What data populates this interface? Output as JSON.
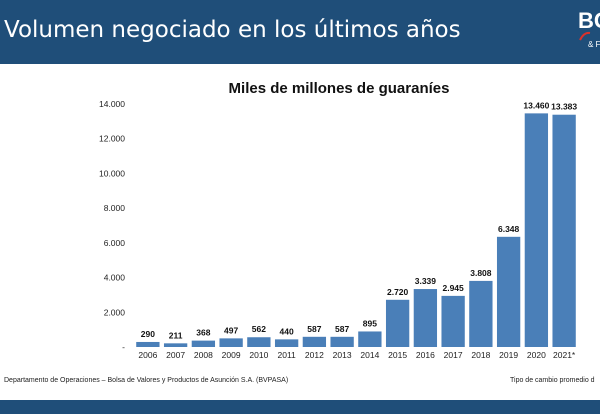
{
  "header": {
    "title": "Volumen negociado en los últimos años",
    "logo_text": "BC",
    "logo_sub": "& F",
    "background_color": "#1f4e79"
  },
  "footer": {
    "source": "Departamento de Operaciones – Bolsa de Valores y Productos de Asunción S.A. (BVPASA)",
    "note": "Tipo de cambio promedio d"
  },
  "chart_data": {
    "type": "bar",
    "title": "Miles de millones de guaraníes",
    "xlabel": "",
    "ylabel": "",
    "categories": [
      "2006",
      "2007",
      "2008",
      "2009",
      "2010",
      "2011",
      "2012",
      "2013",
      "2014",
      "2015",
      "2016",
      "2017",
      "2018",
      "2019",
      "2020",
      "2021*"
    ],
    "values": [
      290,
      211,
      368,
      497,
      562,
      440,
      587,
      587,
      895,
      2720,
      3339,
      2945,
      3808,
      6348,
      13460,
      13383
    ],
    "data_labels": [
      "290",
      "211",
      "368",
      "497",
      "562",
      "440",
      "587",
      "587",
      "895",
      "2.720",
      "3.339",
      "2.945",
      "3.808",
      "6.348",
      "13.460",
      "13.383"
    ],
    "ylim": [
      0,
      14000
    ],
    "yticks": [
      0,
      2000,
      4000,
      6000,
      8000,
      10000,
      12000,
      14000
    ],
    "ytick_labels": [
      "-",
      "2.000",
      "4.000",
      "6.000",
      "8.000",
      "10.000",
      "12.000",
      "14.000"
    ],
    "bar_color": "#4a7fb8",
    "grid": false,
    "legend": "none"
  }
}
